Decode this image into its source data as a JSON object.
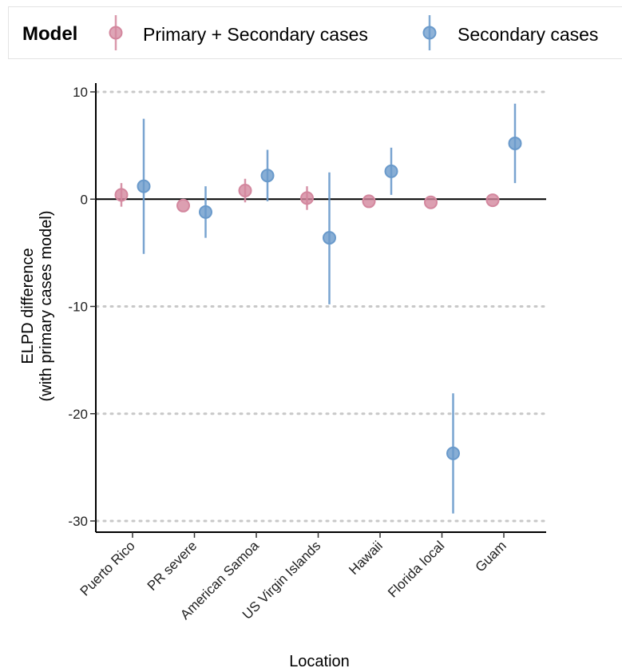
{
  "legend": {
    "title": "Model",
    "items": [
      {
        "label": "Primary + Secondary cases",
        "color": "#d3879e"
      },
      {
        "label": "Secondary cases",
        "color": "#6a9acb"
      }
    ]
  },
  "chart_data": {
    "type": "scatter",
    "subtype": "point-range",
    "categories": [
      "Puerto Rico",
      "PR severe",
      "American Samoa",
      "US Virgin Islands",
      "Hawaii",
      "Florida local",
      "Guam"
    ],
    "xlabel": "Location",
    "ylabel_line1": "ELPD difference",
    "ylabel_line2": "(with primary cases model)",
    "ylim": [
      -31,
      10.5
    ],
    "yticks": [
      10,
      0,
      -10,
      -20,
      -30
    ],
    "ytick_labels": [
      "10",
      "0",
      "-10",
      "-20",
      "-30"
    ],
    "grid": "horizontal dotted",
    "reference_line": 0,
    "legend_position": "top",
    "series": [
      {
        "name": "Primary + Secondary cases",
        "color": "#d3879e",
        "values": [
          0.4,
          -0.6,
          0.8,
          0.1,
          -0.2,
          -0.3,
          -0.1
        ],
        "lower": [
          -0.7,
          -0.6,
          -0.3,
          -1.0,
          -0.2,
          -0.3,
          -0.1
        ],
        "upper": [
          1.5,
          -0.6,
          1.9,
          1.2,
          -0.2,
          -0.3,
          -0.1
        ]
      },
      {
        "name": "Secondary cases",
        "color": "#6a9acb",
        "values": [
          1.2,
          -1.2,
          2.2,
          -3.6,
          2.6,
          -23.7,
          5.2
        ],
        "lower": [
          -5.1,
          -3.6,
          -0.2,
          -9.8,
          0.4,
          -29.3,
          1.5
        ],
        "upper": [
          7.5,
          1.2,
          4.6,
          2.5,
          4.8,
          -18.1,
          8.9
        ]
      }
    ]
  }
}
